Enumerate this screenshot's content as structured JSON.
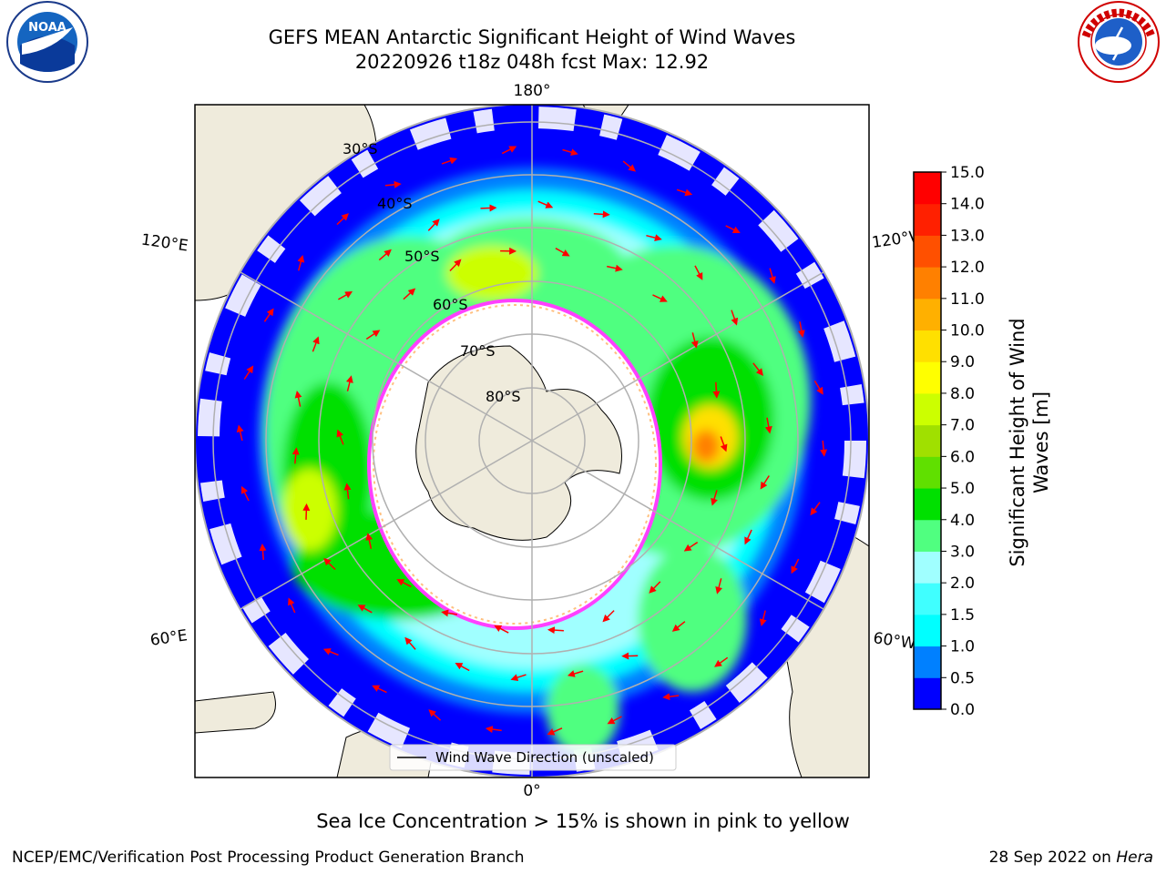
{
  "header": {
    "title_line1": "GEFS MEAN Antarctic Significant Height of Wind Waves",
    "title_line2": "20220926 t18z 048h fcst   Max: 12.92"
  },
  "logos": {
    "noaa_text": "NOAA",
    "noaa_ring_text": "NATIONAL OCEANIC AND ATMOSPHERIC ADMINISTRATION · U.S. DEPARTMENT OF COMMERCE",
    "nws_ring_text": "NATIONAL WEATHER SERVICE"
  },
  "map": {
    "meridian_labels": {
      "top": "180°",
      "bottom": "0°",
      "left_upper": "120°E",
      "left_lower": "60°E",
      "right_upper": "120°W",
      "right_lower": "60°W"
    },
    "latitude_labels": [
      "30°S",
      "40°S",
      "50°S",
      "60°S",
      "70°S",
      "80°S"
    ],
    "legend": "Wind Wave Direction (unscaled)"
  },
  "colorbar": {
    "label_line1": "Significant Height of Wind",
    "label_line2": "Waves [m]",
    "ticks": [
      "15.0",
      "14.0",
      "13.0",
      "12.0",
      "11.0",
      "10.0",
      "9.0",
      "8.0",
      "7.0",
      "6.0",
      "5.0",
      "4.0",
      "3.0",
      "2.0",
      "1.5",
      "1.0",
      "0.5",
      "0.0"
    ],
    "colors": [
      "#0000ff",
      "#0080ff",
      "#00ffff",
      "#40ffff",
      "#a0ffff",
      "#50ff80",
      "#00e000",
      "#60e000",
      "#a0e000",
      "#ccff00",
      "#ffff00",
      "#ffe000",
      "#ffb000",
      "#ff8000",
      "#ff5000",
      "#ff2000",
      "#ff0000"
    ]
  },
  "subtitle": "Sea Ice Concentration > 15% is shown in pink to yellow",
  "footer": {
    "left": "NCEP/EMC/Verification Post Processing Product Generation Branch",
    "right_prefix": "28 Sep 2022 on ",
    "right_italic": "Hera"
  },
  "colors": {
    "land": "#efebdc",
    "ice_edge": "#ff40ff",
    "arrow": "#ff0000",
    "graticule": "#b0b0b0"
  }
}
